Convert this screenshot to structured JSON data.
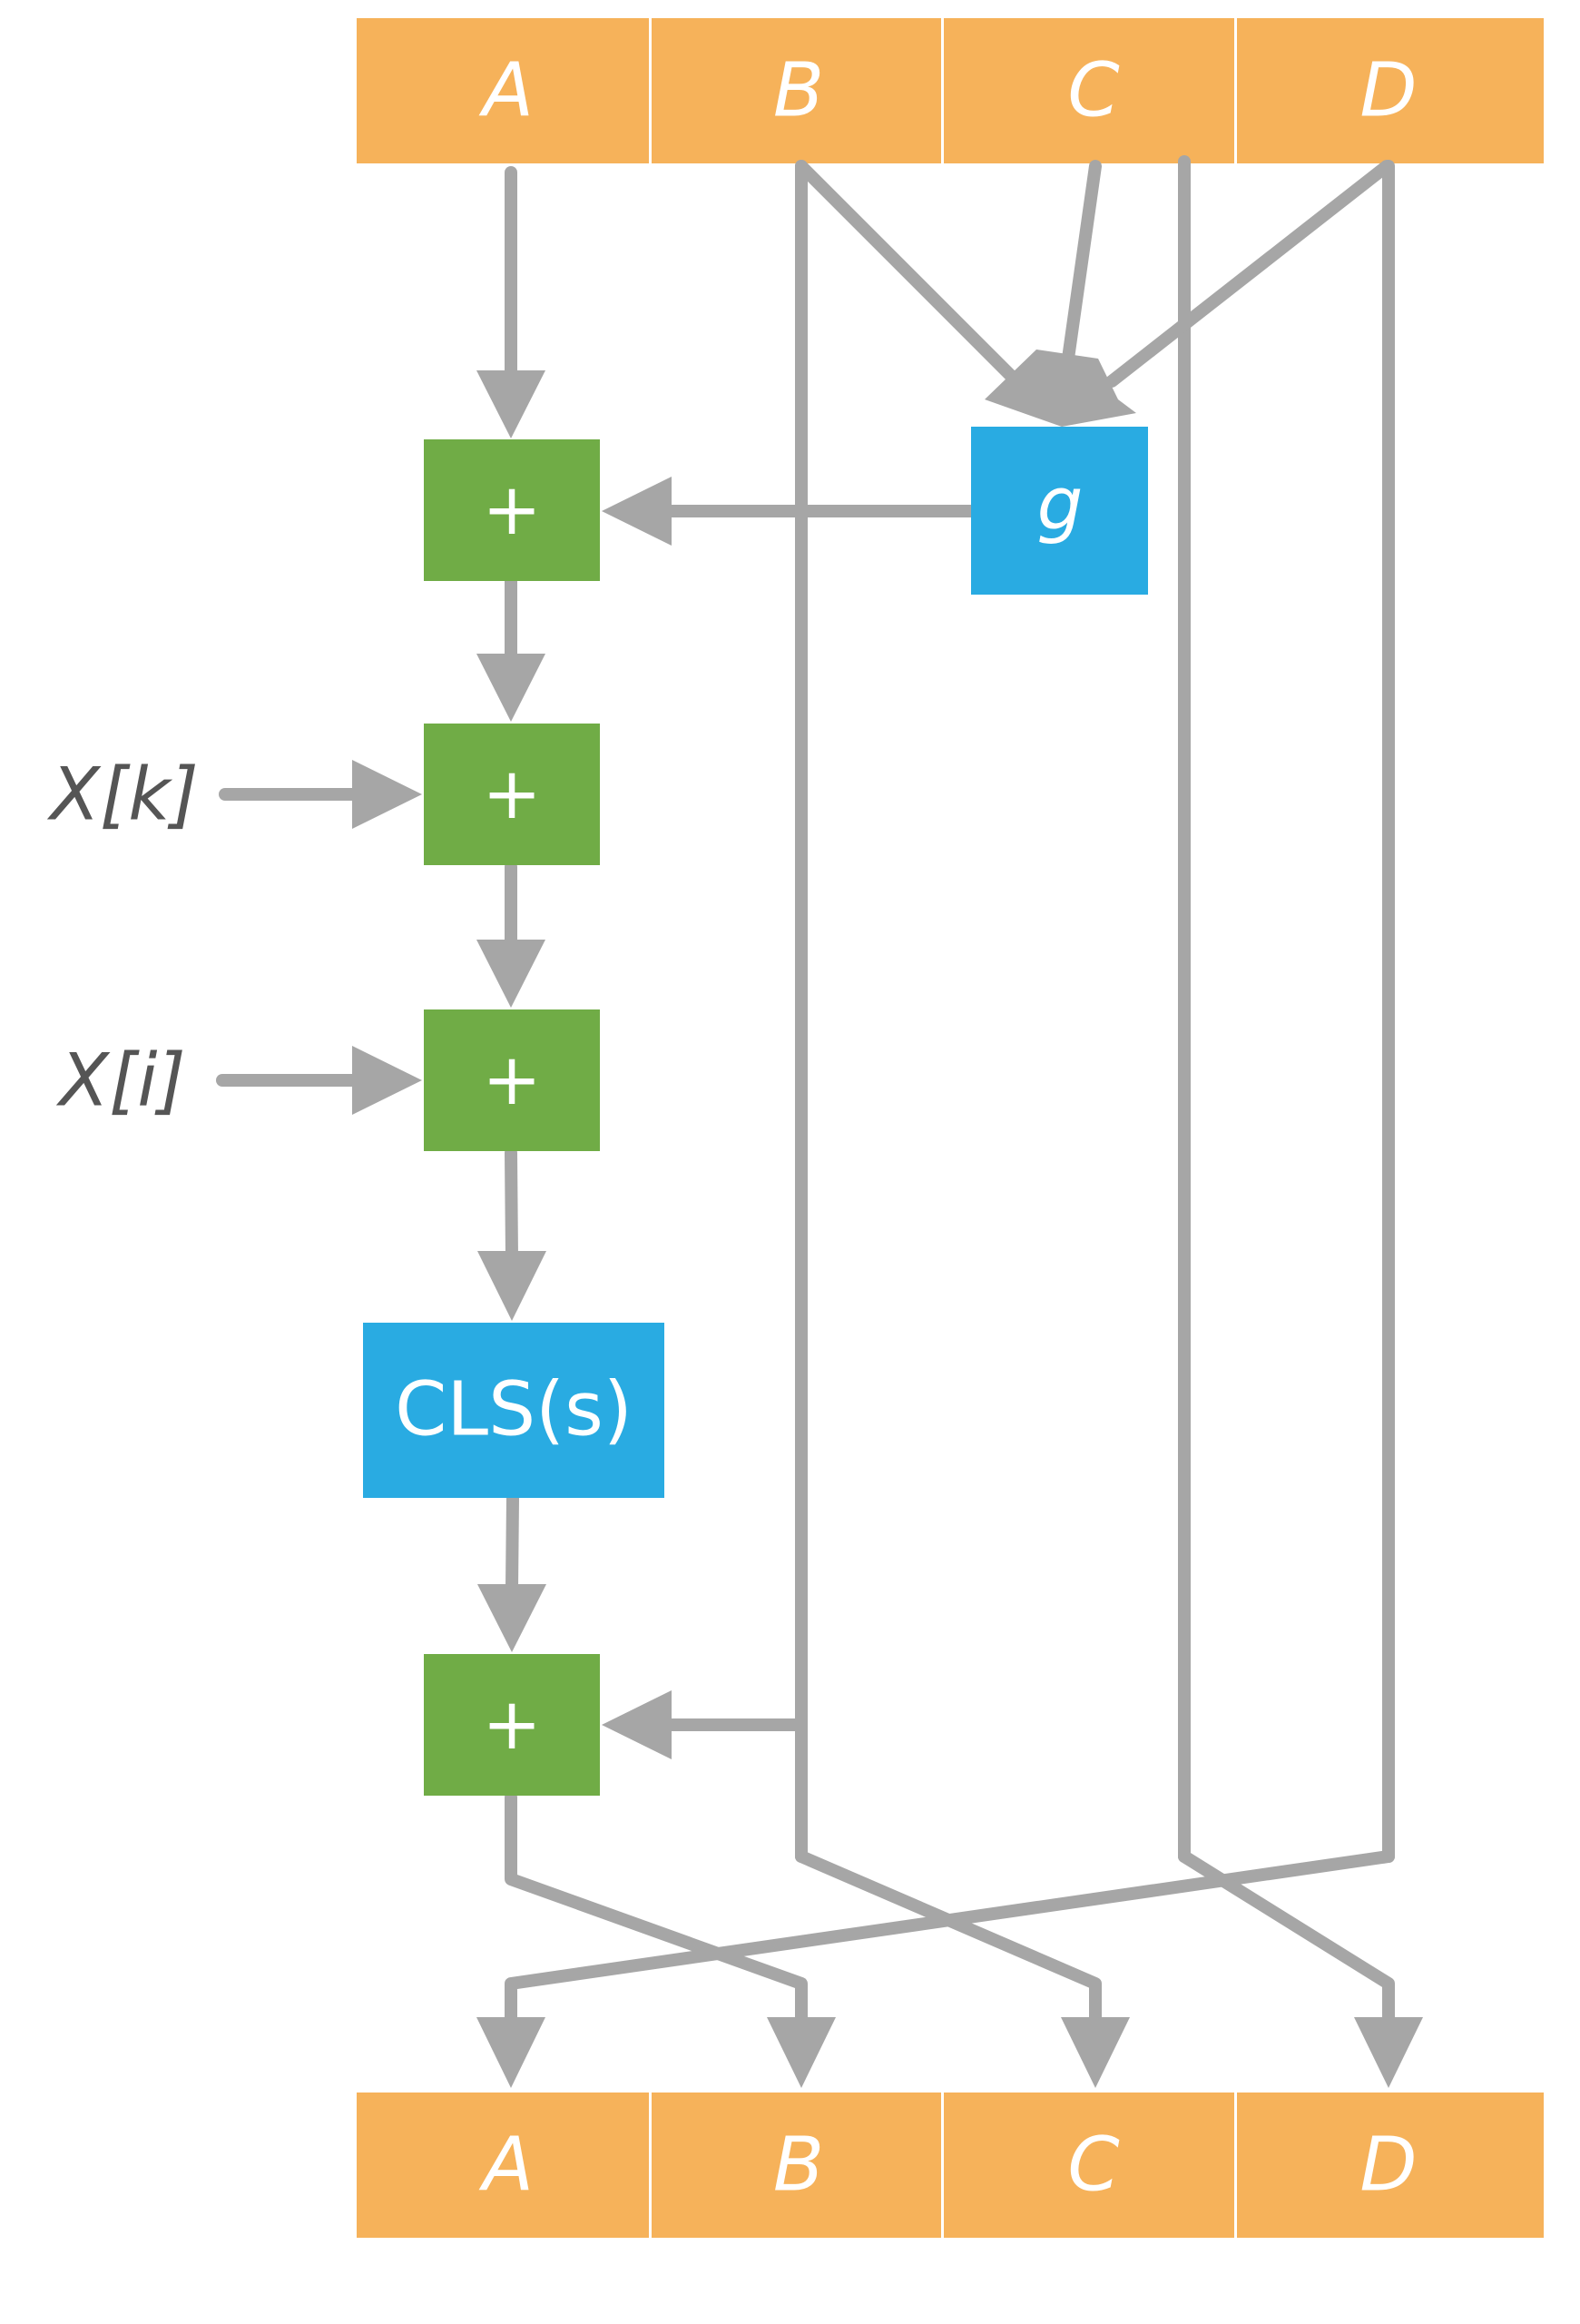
{
  "colors": {
    "register": "#f6b25a",
    "adder": "#70ac46",
    "function": "#29abe2",
    "wire": "#a6a6a6",
    "text": "#ffffff",
    "input_text": "#555555"
  },
  "top_registers": [
    "A",
    "B",
    "C",
    "D"
  ],
  "bottom_registers": [
    "A",
    "B",
    "C",
    "D"
  ],
  "function_g": "g",
  "adder_symbol": "+",
  "inputs": {
    "xk": "X[k]",
    "xi": "X[i]"
  },
  "cls_label": "CLS(s)"
}
